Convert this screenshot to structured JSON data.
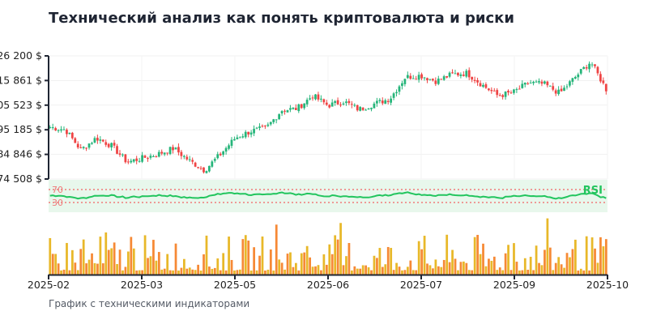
{
  "title": "Технический анализ как понять криптовалюта и риски",
  "caption": "График с техническими индикаторами",
  "chart_data": {
    "type": "candlestick",
    "title": "Технический анализ как понять криптовалюта и риски",
    "y_ticks": [
      "74 508 $",
      "84 846 $",
      "95 185 $",
      "105 523 $",
      "115 861 $",
      "126 200 $"
    ],
    "ylim": [
      74508,
      126200
    ],
    "x_ticks": [
      "2025-02",
      "2025-03",
      "2025-05",
      "2025-06",
      "2025-07",
      "2025-09",
      "2025-10"
    ],
    "xlim": [
      "2025-02",
      "2025-10"
    ],
    "close": [
      96300,
      95200,
      86700,
      91800,
      88400,
      81600,
      83300,
      85000,
      87400,
      82300,
      78200,
      84700,
      91800,
      94600,
      95900,
      103400,
      104100,
      109500,
      105400,
      107100,
      103700,
      106100,
      108200,
      117300,
      118000,
      115600,
      118400,
      119000,
      113900,
      109500,
      110900,
      115000,
      114300,
      110500,
      117300,
      123800,
      112200
    ],
    "rsi": {
      "label": "RSI",
      "upper": 70,
      "lower": 30,
      "typical": 50
    },
    "volume": {
      "shown": true
    },
    "grid": true,
    "colors": {
      "up": "#26b57a",
      "down": "#ef4444",
      "rsi": "#22c55e",
      "rsi_band": "#e8f7ec",
      "rsi_levels": "#ef7a7a",
      "volume_a": "#e6b012",
      "volume_b": "#f57c1f"
    }
  }
}
